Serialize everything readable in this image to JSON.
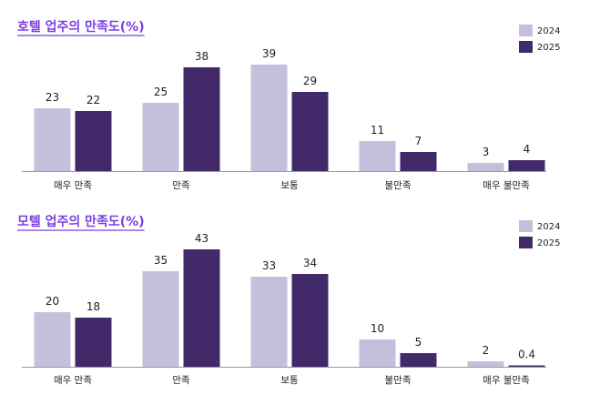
{
  "colors": {
    "series_2024": "#c6bfdc",
    "series_2025": "#42296a",
    "title": "#7b3fe4",
    "axis": "#333333"
  },
  "chart_data": [
    {
      "type": "bar",
      "title": "호텔 업주의 만족도(%)",
      "categories": [
        "매우 만족",
        "만족",
        "보통",
        "불만족",
        "매우 불만족"
      ],
      "series": [
        {
          "name": "2024",
          "values": [
            23,
            25,
            39,
            11,
            3
          ]
        },
        {
          "name": "2025",
          "values": [
            22,
            38,
            29,
            7,
            4
          ]
        }
      ],
      "legend": "top-right",
      "grid": false
    },
    {
      "type": "bar",
      "title": "모텔 업주의 만족도(%)",
      "categories": [
        "매우 만족",
        "만족",
        "보통",
        "불만족",
        "매우 불만족"
      ],
      "series": [
        {
          "name": "2024",
          "values": [
            20,
            35,
            33,
            10,
            2
          ]
        },
        {
          "name": "2025",
          "values": [
            18,
            43,
            34,
            5,
            0.4
          ]
        }
      ],
      "legend": "top-right",
      "grid": false
    }
  ]
}
